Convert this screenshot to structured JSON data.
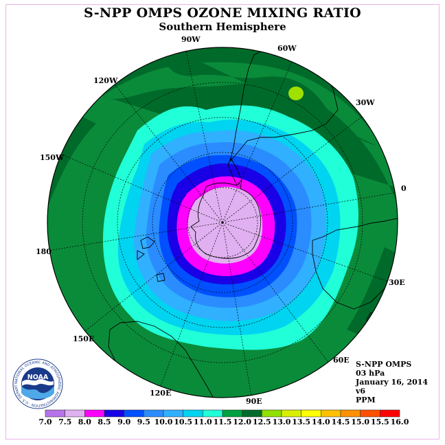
{
  "title": "S-NPP OMPS OZONE MIXING RATIO",
  "subtitle": "Southern Hemisphere",
  "longitude_labels": [
    "90W",
    "60W",
    "30W",
    "0",
    "30E",
    "60E",
    "90E",
    "120E",
    "150E",
    "180",
    "150W",
    "120W"
  ],
  "info": {
    "instrument": "S-NPP OMPS",
    "level": "03 hPa",
    "date": "January 16, 2014",
    "version": "v6",
    "units": "PPM"
  },
  "logo": {
    "text": "NOAA",
    "ring_text": "NATIONAL OCEANIC AND ATMOSPHERIC ADMINISTRATION · U.S. DEPARTMENT OF COMMERCE"
  },
  "colorbar": {
    "ticks": [
      "7.0",
      "7.5",
      "8.0",
      "8.5",
      "9.0",
      "9.5",
      "10.0",
      "10.5",
      "11.0",
      "11.5",
      "12.0",
      "12.5",
      "13.0",
      "13.5",
      "14.0",
      "14.5",
      "15.0",
      "15.5",
      "16.0"
    ],
    "colors": [
      "#b673ea",
      "#e0b0f0",
      "#ff00ff",
      "#1a00e6",
      "#0050ff",
      "#2a8cff",
      "#30b0ff",
      "#00d4f0",
      "#20ffd8",
      "#00a040",
      "#006a2a",
      "#90e000",
      "#d8f000",
      "#ffff00",
      "#ffc000",
      "#ff9000",
      "#ff5000",
      "#ff0000",
      "#8b4a2a"
    ]
  },
  "legend_colors": {
    "outer_band": "#0a8b3a",
    "dark_band": "#006a2a",
    "peak_spot": "#a0e000",
    "coast": "#000000"
  }
}
